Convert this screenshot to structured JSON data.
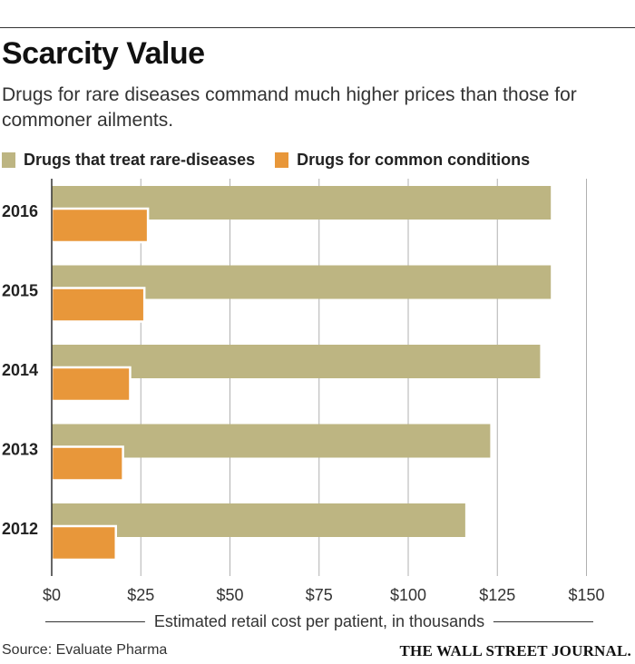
{
  "colors": {
    "rare": "#bdb582",
    "common": "#e8973a",
    "grid": "#b0b0b0",
    "axis": "#333333"
  },
  "source": "Source: Evaluate Pharma",
  "brand": "THE WALL STREET JOURNAL.",
  "chart_data": {
    "type": "bar",
    "orientation": "horizontal",
    "title": "Scarcity Value",
    "subtitle": "Drugs for rare diseases command much higher prices than those for commoner ailments.",
    "xlabel": "Estimated retail cost per patient, in thousands",
    "ylabel": "",
    "categories": [
      "2016",
      "2015",
      "2014",
      "2013",
      "2012"
    ],
    "xlim": [
      0,
      150
    ],
    "xticks": [
      {
        "value": 0,
        "label": "$0"
      },
      {
        "value": 25,
        "label": "$25"
      },
      {
        "value": 50,
        "label": "$50"
      },
      {
        "value": 75,
        "label": "$75"
      },
      {
        "value": 100,
        "label": "$100"
      },
      {
        "value": 125,
        "label": "$125"
      },
      {
        "value": 150,
        "label": "$150"
      }
    ],
    "grid": true,
    "legend_position": "top-left",
    "series": [
      {
        "name": "Drugs that treat rare-diseases",
        "values": [
          140,
          140,
          137,
          123,
          116
        ]
      },
      {
        "name": "Drugs for common conditions",
        "values": [
          27,
          26,
          22,
          20,
          18
        ]
      }
    ]
  }
}
